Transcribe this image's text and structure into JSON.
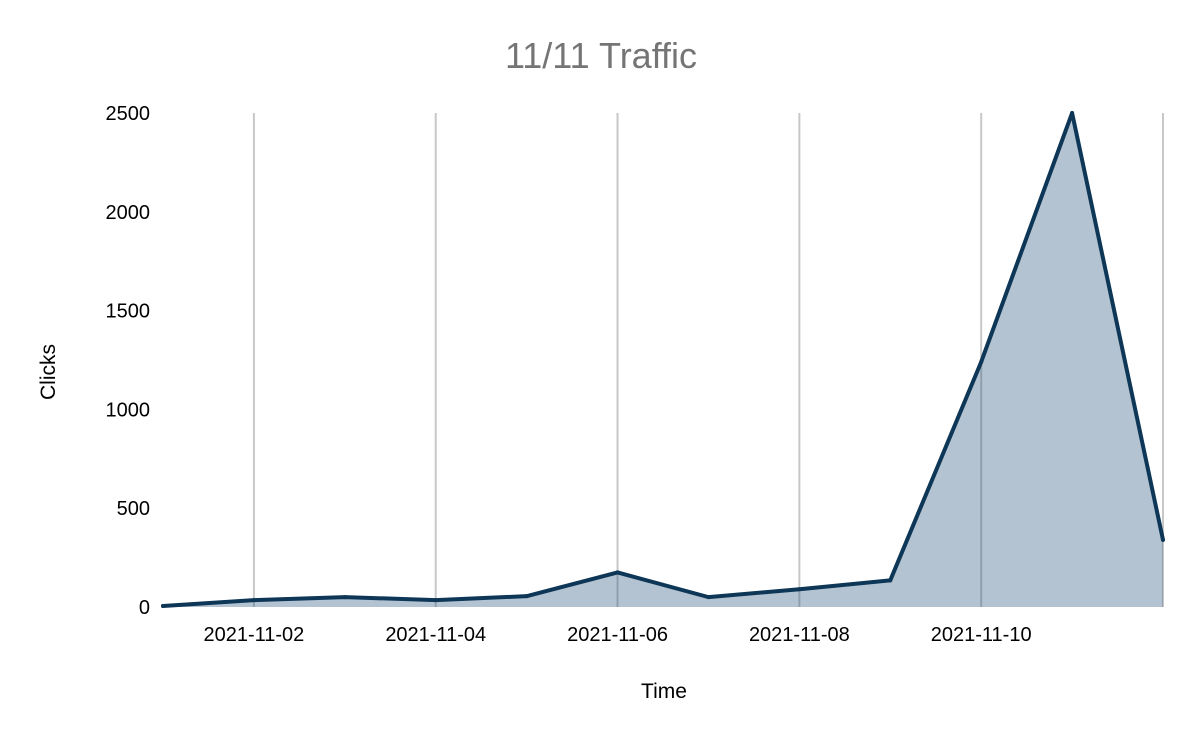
{
  "chart_data": {
    "type": "area",
    "title": "11/11 Traffic",
    "xlabel": "Time",
    "ylabel": "Clicks",
    "x": [
      "2021-11-01",
      "2021-11-02",
      "2021-11-03",
      "2021-11-04",
      "2021-11-05",
      "2021-11-06",
      "2021-11-07",
      "2021-11-08",
      "2021-11-09",
      "2021-11-10",
      "2021-11-11",
      "2021-11-12"
    ],
    "series": [
      {
        "values": [
          5,
          35,
          50,
          35,
          55,
          175,
          50,
          90,
          135,
          1240,
          2500,
          340
        ],
        "color": "#0d3657"
      }
    ],
    "xticks": [
      "2021-11-02",
      "2021-11-04",
      "2021-11-06",
      "2021-11-08",
      "2021-11-10"
    ],
    "yticks": [
      "0",
      "500",
      "1000",
      "1500",
      "2000",
      "2500"
    ],
    "ylim": [
      0,
      2500
    ],
    "xlim": [
      "2021-11-01",
      "2021-11-12"
    ],
    "grid": "vertical",
    "legend": "none"
  }
}
